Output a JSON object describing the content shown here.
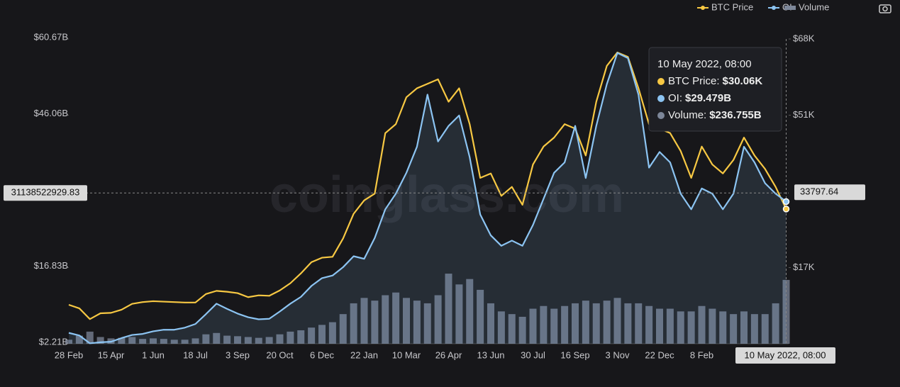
{
  "chart_data": {
    "type": "line",
    "watermark": "coinglass.com",
    "categories": [
      "28 Feb",
      null,
      null,
      null,
      "15 Apr",
      null,
      null,
      null,
      "1 Jun",
      null,
      null,
      null,
      "18 Jul",
      null,
      null,
      null,
      "3 Sep",
      null,
      null,
      null,
      "20 Oct",
      null,
      null,
      null,
      "6 Dec",
      null,
      null,
      null,
      "22 Jan",
      null,
      null,
      null,
      "10 Mar",
      null,
      null,
      null,
      "26 Apr",
      null,
      null,
      null,
      "13 Jun",
      null,
      null,
      null,
      "30 Jul",
      null,
      null,
      null,
      "16 Sep",
      null,
      null,
      null,
      "3 Nov",
      null,
      null,
      null,
      "22 Dec",
      null,
      null,
      null,
      "8 Feb",
      null,
      null,
      null,
      null,
      null,
      null,
      null,
      "10 May 2022, 08:00"
    ],
    "series": [
      {
        "name": "BTC Price",
        "color": "#f7c843",
        "axis": "y2",
        "values": [
          8.7,
          7.9,
          5.5,
          6.8,
          6.9,
          7.6,
          8.9,
          9.3,
          9.5,
          9.4,
          9.3,
          9.2,
          9.2,
          11.1,
          11.8,
          11.6,
          11.3,
          10.4,
          10.8,
          10.7,
          11.9,
          13.5,
          15.7,
          18.2,
          19.2,
          19.4,
          23.5,
          29.0,
          32.0,
          33.5,
          47,
          49,
          55,
          57,
          58,
          59,
          54,
          57,
          49,
          37,
          38,
          33,
          35,
          31,
          40,
          44,
          46,
          49,
          48,
          42,
          54,
          62,
          65,
          64,
          57,
          49,
          48,
          47,
          43,
          37,
          44,
          40,
          38,
          41,
          46,
          42,
          39,
          35,
          30.06
        ]
      },
      {
        "name": "OI",
        "color": "#8cc4f2",
        "values": [
          4.3,
          3.8,
          2.3,
          2.5,
          2.6,
          3.3,
          3.9,
          4.1,
          4.6,
          4.9,
          4.9,
          5.3,
          6.0,
          7.9,
          9.9,
          8.9,
          8.0,
          7.3,
          6.9,
          7.0,
          8.4,
          9.9,
          11.2,
          13.3,
          14.8,
          15.3,
          16.9,
          19.0,
          18.5,
          22.5,
          28,
          31,
          35,
          40,
          50,
          41,
          44,
          46,
          38,
          27,
          23,
          21,
          22,
          21,
          25,
          30,
          35,
          37,
          44,
          34,
          44,
          52,
          58,
          57,
          50,
          36,
          39,
          37,
          31,
          28,
          32,
          31,
          28,
          31,
          40,
          37,
          33,
          31,
          29.479
        ]
      },
      {
        "name": "Volume",
        "color": "#7d8799",
        "type": "bar",
        "axis": "y3",
        "values": [
          15,
          30,
          45,
          25,
          20,
          22,
          25,
          18,
          20,
          18,
          15,
          15,
          20,
          35,
          40,
          30,
          28,
          25,
          22,
          25,
          35,
          45,
          50,
          60,
          70,
          80,
          110,
          150,
          170,
          160,
          180,
          190,
          170,
          160,
          150,
          180,
          260,
          220,
          240,
          200,
          150,
          120,
          110,
          100,
          130,
          140,
          130,
          140,
          150,
          160,
          150,
          160,
          170,
          150,
          150,
          140,
          130,
          130,
          120,
          120,
          140,
          130,
          120,
          110,
          120,
          110,
          110,
          150,
          236.755
        ]
      }
    ],
    "ylim": [
      2.21,
      60.67
    ],
    "yticks": [
      {
        "value": 2.21,
        "label": "$2.21B"
      },
      {
        "value": 16.83,
        "label": "$16.83B"
      },
      {
        "value": 46.06,
        "label": "$46.06B"
      },
      {
        "value": 60.67,
        "label": "$60.67B"
      }
    ],
    "y2lim": [
      0,
      68
    ],
    "y2ticks": [
      {
        "value": 17,
        "label": "$17K"
      },
      {
        "value": 51,
        "label": "$51K"
      },
      {
        "value": 68,
        "label": "$68K"
      }
    ],
    "y3lim": [
      0,
      1130
    ],
    "crosshair": {
      "y": {
        "value": 31.13852292983,
        "label": "31138522929.83"
      },
      "y2": {
        "value": 33.79764,
        "label": "33797.64"
      }
    },
    "tooltip": {
      "items": [
        {
          "label": "BTC Price:",
          "value_label": "$30.06K"
        },
        {
          "label": "OI:",
          "value_label": "$29.479B"
        },
        {
          "label": "Volume:",
          "value_label": "$236.755B"
        }
      ]
    }
  }
}
